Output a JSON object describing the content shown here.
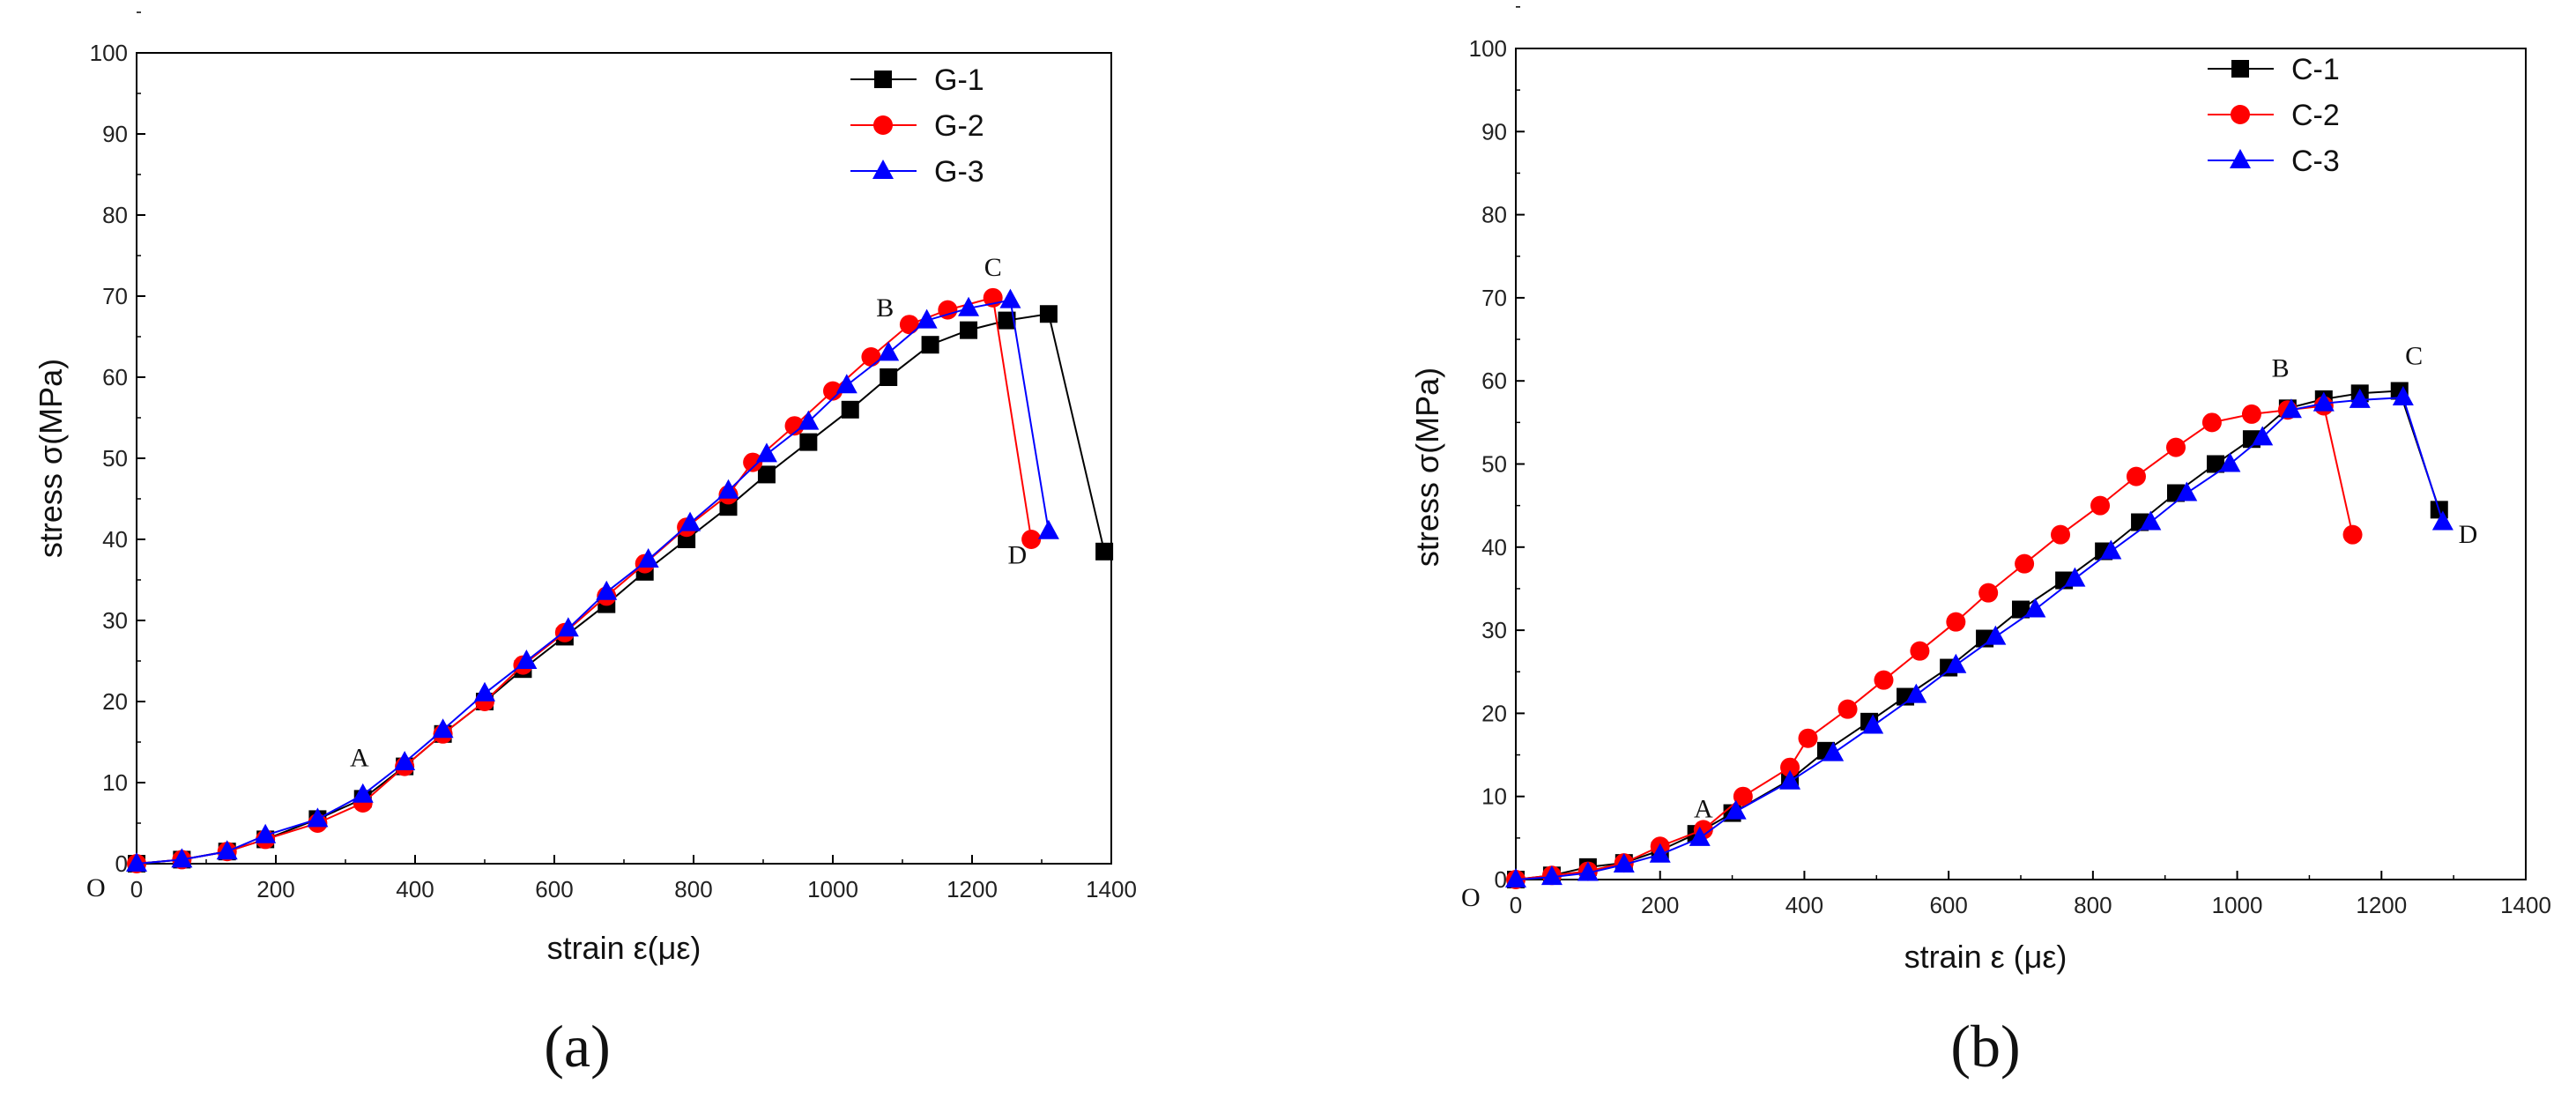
{
  "chart_data": [
    {
      "type": "line",
      "panel_label": "(a)",
      "xlabel": "strain  ε(με)",
      "ylabel": "stress  σ(MPa)",
      "xlim": [
        0,
        1400
      ],
      "ylim": [
        0,
        100
      ],
      "x_ticks": [
        0,
        200,
        400,
        600,
        800,
        1000,
        1200,
        1400
      ],
      "y_ticks": [
        0,
        10,
        20,
        30,
        40,
        50,
        60,
        70,
        80,
        90,
        100
      ],
      "origin_label": "O",
      "legend_position": "top-right",
      "series": [
        {
          "name": "G-1",
          "color": "#000000",
          "marker": "square",
          "x": [
            0,
            65,
            130,
            185,
            260,
            325,
            385,
            440,
            500,
            555,
            615,
            675,
            730,
            790,
            850,
            905,
            965,
            1025,
            1080,
            1140,
            1195,
            1250,
            1310,
            1390
          ],
          "y": [
            0,
            0.5,
            1.5,
            3,
            5.5,
            8,
            12,
            16,
            20,
            24,
            28,
            32,
            36,
            40,
            44,
            48,
            52,
            56,
            60,
            64,
            65.8,
            67,
            67.8,
            38.5
          ]
        },
        {
          "name": "G-2",
          "color": "#ff0000",
          "marker": "circle",
          "x": [
            0,
            65,
            130,
            185,
            260,
            325,
            385,
            440,
            500,
            555,
            615,
            675,
            730,
            790,
            850,
            885,
            945,
            1000,
            1055,
            1110,
            1165,
            1230,
            1285
          ],
          "y": [
            0,
            0.5,
            1.5,
            3,
            5,
            7.5,
            12,
            16,
            20,
            24.5,
            28.5,
            33,
            37,
            41.5,
            45.5,
            49.5,
            54,
            58.3,
            62.5,
            66.5,
            68.3,
            69.8,
            40
          ]
        },
        {
          "name": "G-3",
          "color": "#0000ff",
          "marker": "triangle",
          "x": [
            0,
            65,
            130,
            185,
            260,
            325,
            385,
            440,
            500,
            560,
            620,
            675,
            735,
            795,
            850,
            905,
            965,
            1020,
            1080,
            1135,
            1195,
            1255,
            1310
          ],
          "y": [
            0,
            0.5,
            1.5,
            3.5,
            5.5,
            8.5,
            12.5,
            16.5,
            21,
            25,
            29,
            33.5,
            37.5,
            42,
            46,
            50.5,
            54.5,
            59,
            63,
            67,
            68.5,
            69.5,
            41
          ]
        }
      ],
      "annotations": [
        {
          "text": "A",
          "x": 320,
          "y": 12
        },
        {
          "text": "B",
          "x": 1075,
          "y": 67.5
        },
        {
          "text": "C",
          "x": 1230,
          "y": 72.5
        },
        {
          "text": "D",
          "x": 1265,
          "y": 37
        }
      ]
    },
    {
      "type": "line",
      "panel_label": "(b)",
      "xlabel": "strain ε (με)",
      "ylabel": "stress σ(MPa)",
      "xlim": [
        0,
        1400
      ],
      "ylim": [
        0,
        100
      ],
      "x_ticks": [
        0,
        200,
        400,
        600,
        800,
        1000,
        1200,
        1400
      ],
      "y_ticks": [
        0,
        10,
        20,
        30,
        40,
        50,
        60,
        70,
        80,
        90,
        100
      ],
      "origin_label": "O",
      "legend_position": "top-right",
      "series": [
        {
          "name": "C-1",
          "color": "#000000",
          "marker": "square",
          "x": [
            0,
            50,
            100,
            150,
            200,
            250,
            300,
            380,
            430,
            490,
            540,
            600,
            650,
            700,
            760,
            815,
            865,
            915,
            970,
            1020,
            1070,
            1120,
            1170,
            1225,
            1280
          ],
          "y": [
            0,
            0.5,
            1.5,
            2,
            3.5,
            5.5,
            8,
            12,
            15.5,
            19,
            22,
            25.5,
            29,
            32.5,
            36,
            39.5,
            43,
            46.5,
            50,
            53,
            56.7,
            57.8,
            58.5,
            58.8,
            44.5
          ]
        },
        {
          "name": "C-2",
          "color": "#ff0000",
          "marker": "circle",
          "x": [
            0,
            50,
            100,
            150,
            200,
            260,
            315,
            380,
            405,
            460,
            510,
            560,
            610,
            655,
            705,
            755,
            810,
            860,
            915,
            965,
            1020,
            1070,
            1120,
            1160
          ],
          "y": [
            0,
            0.5,
            1,
            2,
            4,
            6,
            10,
            13.5,
            17,
            20.5,
            24,
            27.5,
            31,
            34.5,
            38,
            41.5,
            45,
            48.5,
            52,
            55,
            56,
            56.5,
            57,
            41.5
          ]
        },
        {
          "name": "C-3",
          "color": "#0000ff",
          "marker": "triangle",
          "x": [
            0,
            50,
            100,
            150,
            200,
            255,
            305,
            380,
            440,
            495,
            555,
            610,
            665,
            720,
            775,
            825,
            880,
            930,
            990,
            1035,
            1075,
            1120,
            1170,
            1230,
            1285
          ],
          "y": [
            0,
            0.3,
            0.8,
            1.8,
            3,
            5,
            8.2,
            11.8,
            15.2,
            18.5,
            22.2,
            25.8,
            29.2,
            32.5,
            36.2,
            39.5,
            43,
            46.5,
            50,
            53.2,
            56.5,
            57.3,
            57.7,
            58,
            43
          ]
        }
      ],
      "annotations": [
        {
          "text": "A",
          "x": 260,
          "y": 7.5
        },
        {
          "text": "B",
          "x": 1060,
          "y": 60.5
        },
        {
          "text": "C",
          "x": 1245,
          "y": 62
        },
        {
          "text": "D",
          "x": 1320,
          "y": 40.5
        }
      ]
    }
  ]
}
